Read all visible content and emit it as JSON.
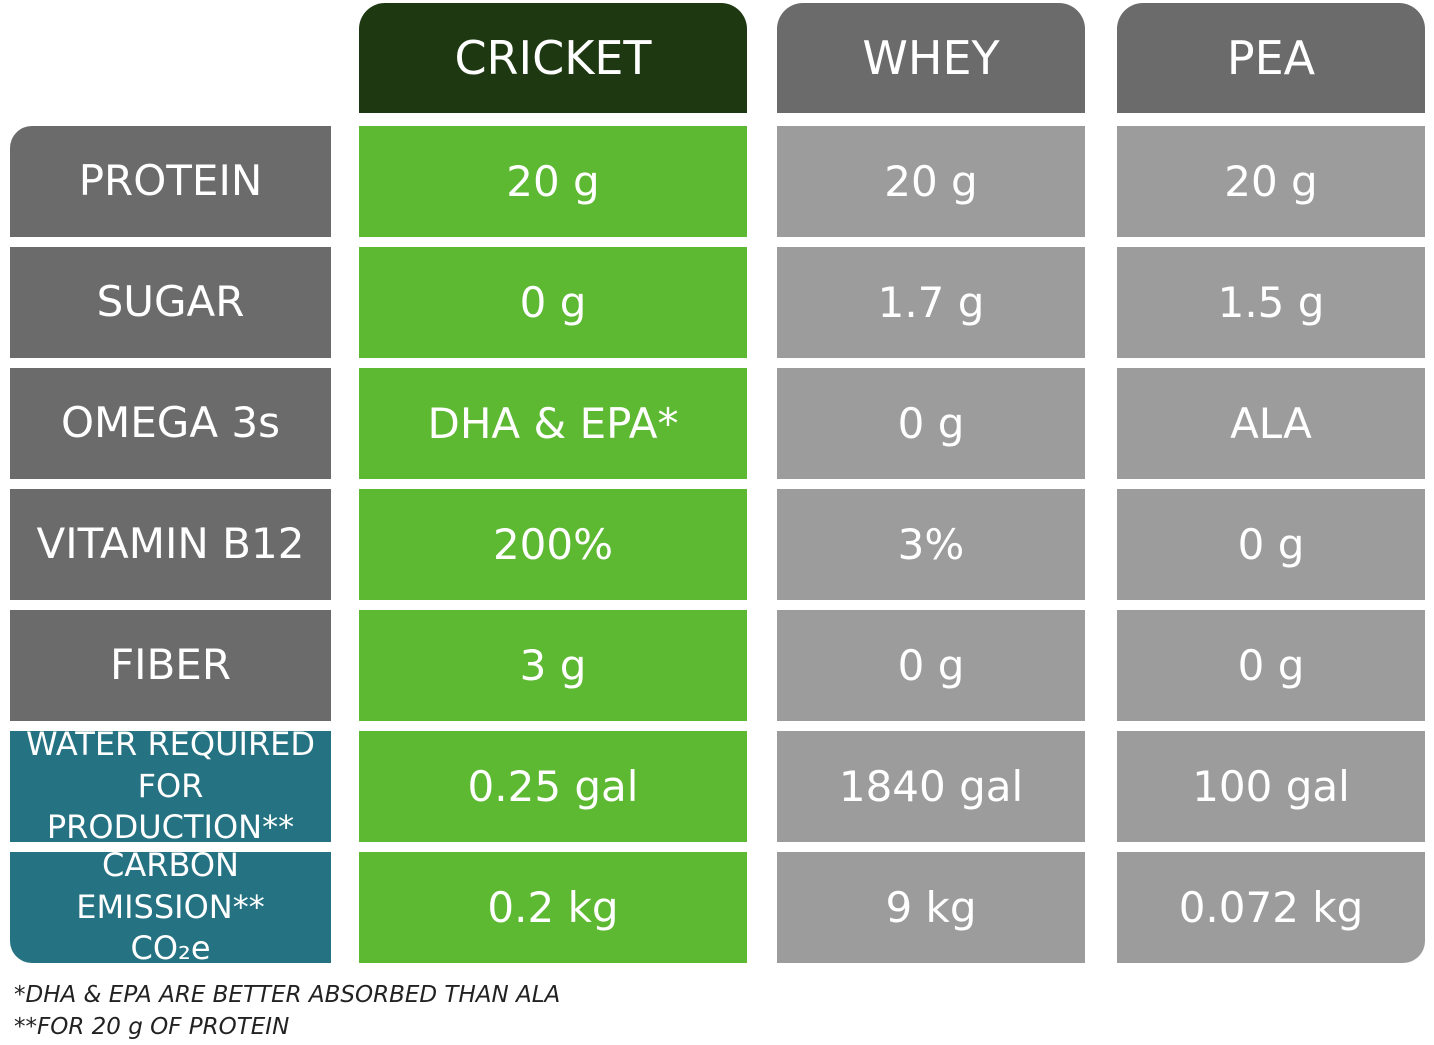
{
  "table": {
    "columns": [
      "CRICKET",
      "WHEY",
      "PEA"
    ],
    "rows": [
      {
        "label": [
          "PROTEIN"
        ],
        "kind": "nutrient",
        "cells": [
          "20 g",
          "20 g",
          "20 g"
        ]
      },
      {
        "label": [
          "SUGAR"
        ],
        "kind": "nutrient",
        "cells": [
          "0 g",
          "1.7 g",
          "1.5 g"
        ]
      },
      {
        "label": [
          "OMEGA 3s"
        ],
        "kind": "nutrient",
        "cells": [
          "DHA & EPA*",
          "0 g",
          "ALA"
        ]
      },
      {
        "label": [
          "VITAMIN B12"
        ],
        "kind": "nutrient",
        "cells": [
          "200%",
          "3%",
          "0 g"
        ]
      },
      {
        "label": [
          "FIBER"
        ],
        "kind": "nutrient",
        "cells": [
          "3 g",
          "0 g",
          "0 g"
        ]
      },
      {
        "label": [
          "WATER REQUIRED",
          "FOR PRODUCTION**"
        ],
        "kind": "environment",
        "cells": [
          "0.25 gal",
          "1840 gal",
          "100 gal"
        ]
      },
      {
        "label": [
          "CARBON EMISSION**",
          "CO₂e"
        ],
        "kind": "environment",
        "cells": [
          "0.2 kg",
          "9 kg",
          "0.072 kg"
        ]
      }
    ]
  },
  "footnotes": [
    "*DHA & EPA ARE BETTER ABSORBED THAN ALA",
    "**FOR 20 g OF PROTEIN"
  ]
}
